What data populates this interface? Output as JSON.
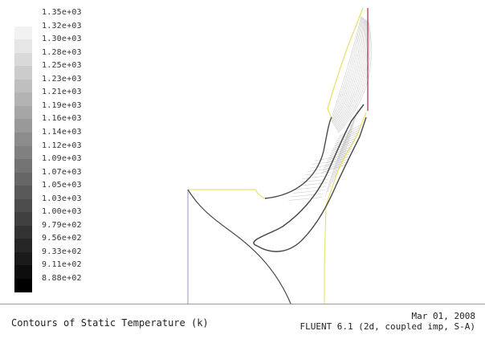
{
  "legend": {
    "labels": [
      "1.35e+03",
      "1.32e+03",
      "1.30e+03",
      "1.28e+03",
      "1.25e+03",
      "1.23e+03",
      "1.21e+03",
      "1.19e+03",
      "1.16e+03",
      "1.14e+03",
      "1.12e+03",
      "1.09e+03",
      "1.07e+03",
      "1.05e+03",
      "1.03e+03",
      "1.00e+03",
      "9.79e+02",
      "9.56e+02",
      "9.33e+02",
      "9.11e+02",
      "8.88e+02"
    ],
    "color_max": "#ffffff",
    "color_min": "#000000"
  },
  "footer": {
    "title": "Contours of Static Temperature (k)",
    "date": "Mar 01, 2008",
    "solver": "FLUENT 6.1 (2d, coupled imp, S-A)"
  },
  "colors": {
    "boundary_inlet": "#e8e070",
    "boundary_outlet": "#c03050",
    "boundary_wall": "#4a4a4a",
    "boundary_periodic": "#9aa0d0",
    "contour_line": "#bfbfbf"
  }
}
